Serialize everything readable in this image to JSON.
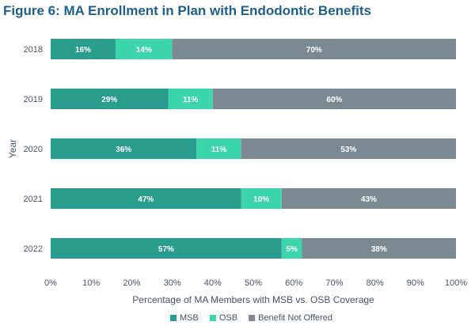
{
  "chart_data": {
    "type": "bar",
    "orientation": "horizontal",
    "stacked": true,
    "title": "Figure 6: MA Enrollment in Plan with Endodontic Benefits",
    "xlabel": "Percentage of MA Members with MSB vs. OSB Coverage",
    "ylabel": "Year",
    "categories": [
      "2018",
      "2019",
      "2020",
      "2021",
      "2022"
    ],
    "series": [
      {
        "name": "MSB",
        "color": "#2a9d8f",
        "values": [
          16,
          29,
          36,
          47,
          57
        ],
        "labels": [
          "16%",
          "29%",
          "36%",
          "47%",
          "57%"
        ]
      },
      {
        "name": "OSB",
        "color": "#3dd6ab",
        "values": [
          14,
          11,
          11,
          10,
          5
        ],
        "labels": [
          "14%",
          "11%",
          "11%",
          "10%",
          "5%"
        ]
      },
      {
        "name": "Benefit Not Offered",
        "color": "#7d8991",
        "values": [
          70,
          60,
          53,
          43,
          38
        ],
        "labels": [
          "70%",
          "60%",
          "53%",
          "43%",
          "38%"
        ]
      }
    ],
    "xlim": [
      0,
      100
    ],
    "xticks": [
      "0%",
      "10%",
      "20%",
      "30%",
      "40%",
      "50%",
      "60%",
      "70%",
      "80%",
      "90%",
      "100%"
    ],
    "grid": false,
    "legend_position": "bottom"
  }
}
